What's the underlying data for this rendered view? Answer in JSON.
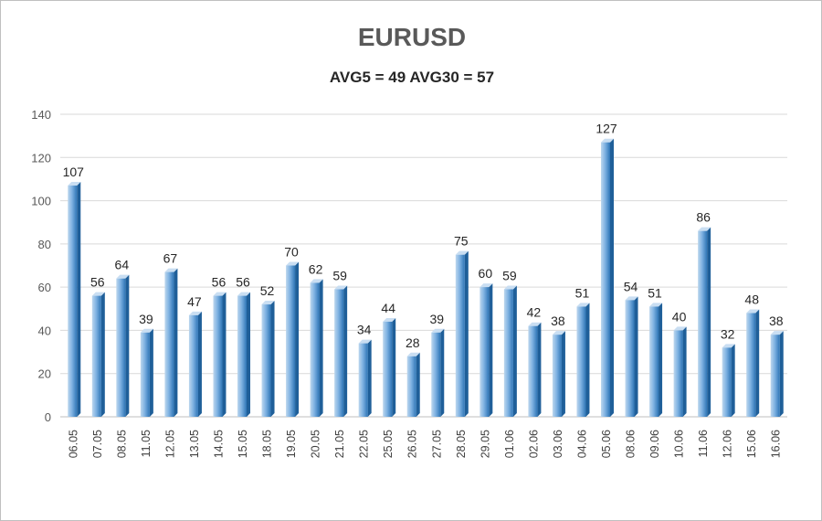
{
  "chart_data": {
    "type": "bar",
    "title": "EURUSD",
    "subtitle": "AVG5 = 49 AVG30 = 57",
    "xlabel": "",
    "ylabel": "",
    "ylim": [
      0,
      140
    ],
    "yticks": [
      "0",
      "20",
      "40",
      "60",
      "80",
      "100",
      "120",
      "140"
    ],
    "grid": true,
    "categories": [
      "06.05",
      "07.05",
      "08.05",
      "11.05",
      "12.05",
      "13.05",
      "14.05",
      "15.05",
      "18.05",
      "19.05",
      "20.05",
      "21.05",
      "22.05",
      "25.05",
      "26.05",
      "27.05",
      "28.05",
      "29.05",
      "01.06",
      "02.06",
      "03.06",
      "04.06",
      "05.06",
      "08.06",
      "09.06",
      "10.06",
      "11.06",
      "12.06",
      "15.06",
      "16.06"
    ],
    "values": [
      107,
      56,
      64,
      39,
      67,
      47,
      56,
      56,
      52,
      70,
      62,
      59,
      34,
      44,
      28,
      39,
      75,
      60,
      59,
      42,
      38,
      51,
      127,
      54,
      51,
      40,
      86,
      32,
      48,
      38
    ],
    "colors": {
      "bar_light": "#9dc3e6",
      "bar_mid": "#5b9bd5",
      "bar_dark": "#2e75b6",
      "grid": "#d9d9d9"
    }
  }
}
